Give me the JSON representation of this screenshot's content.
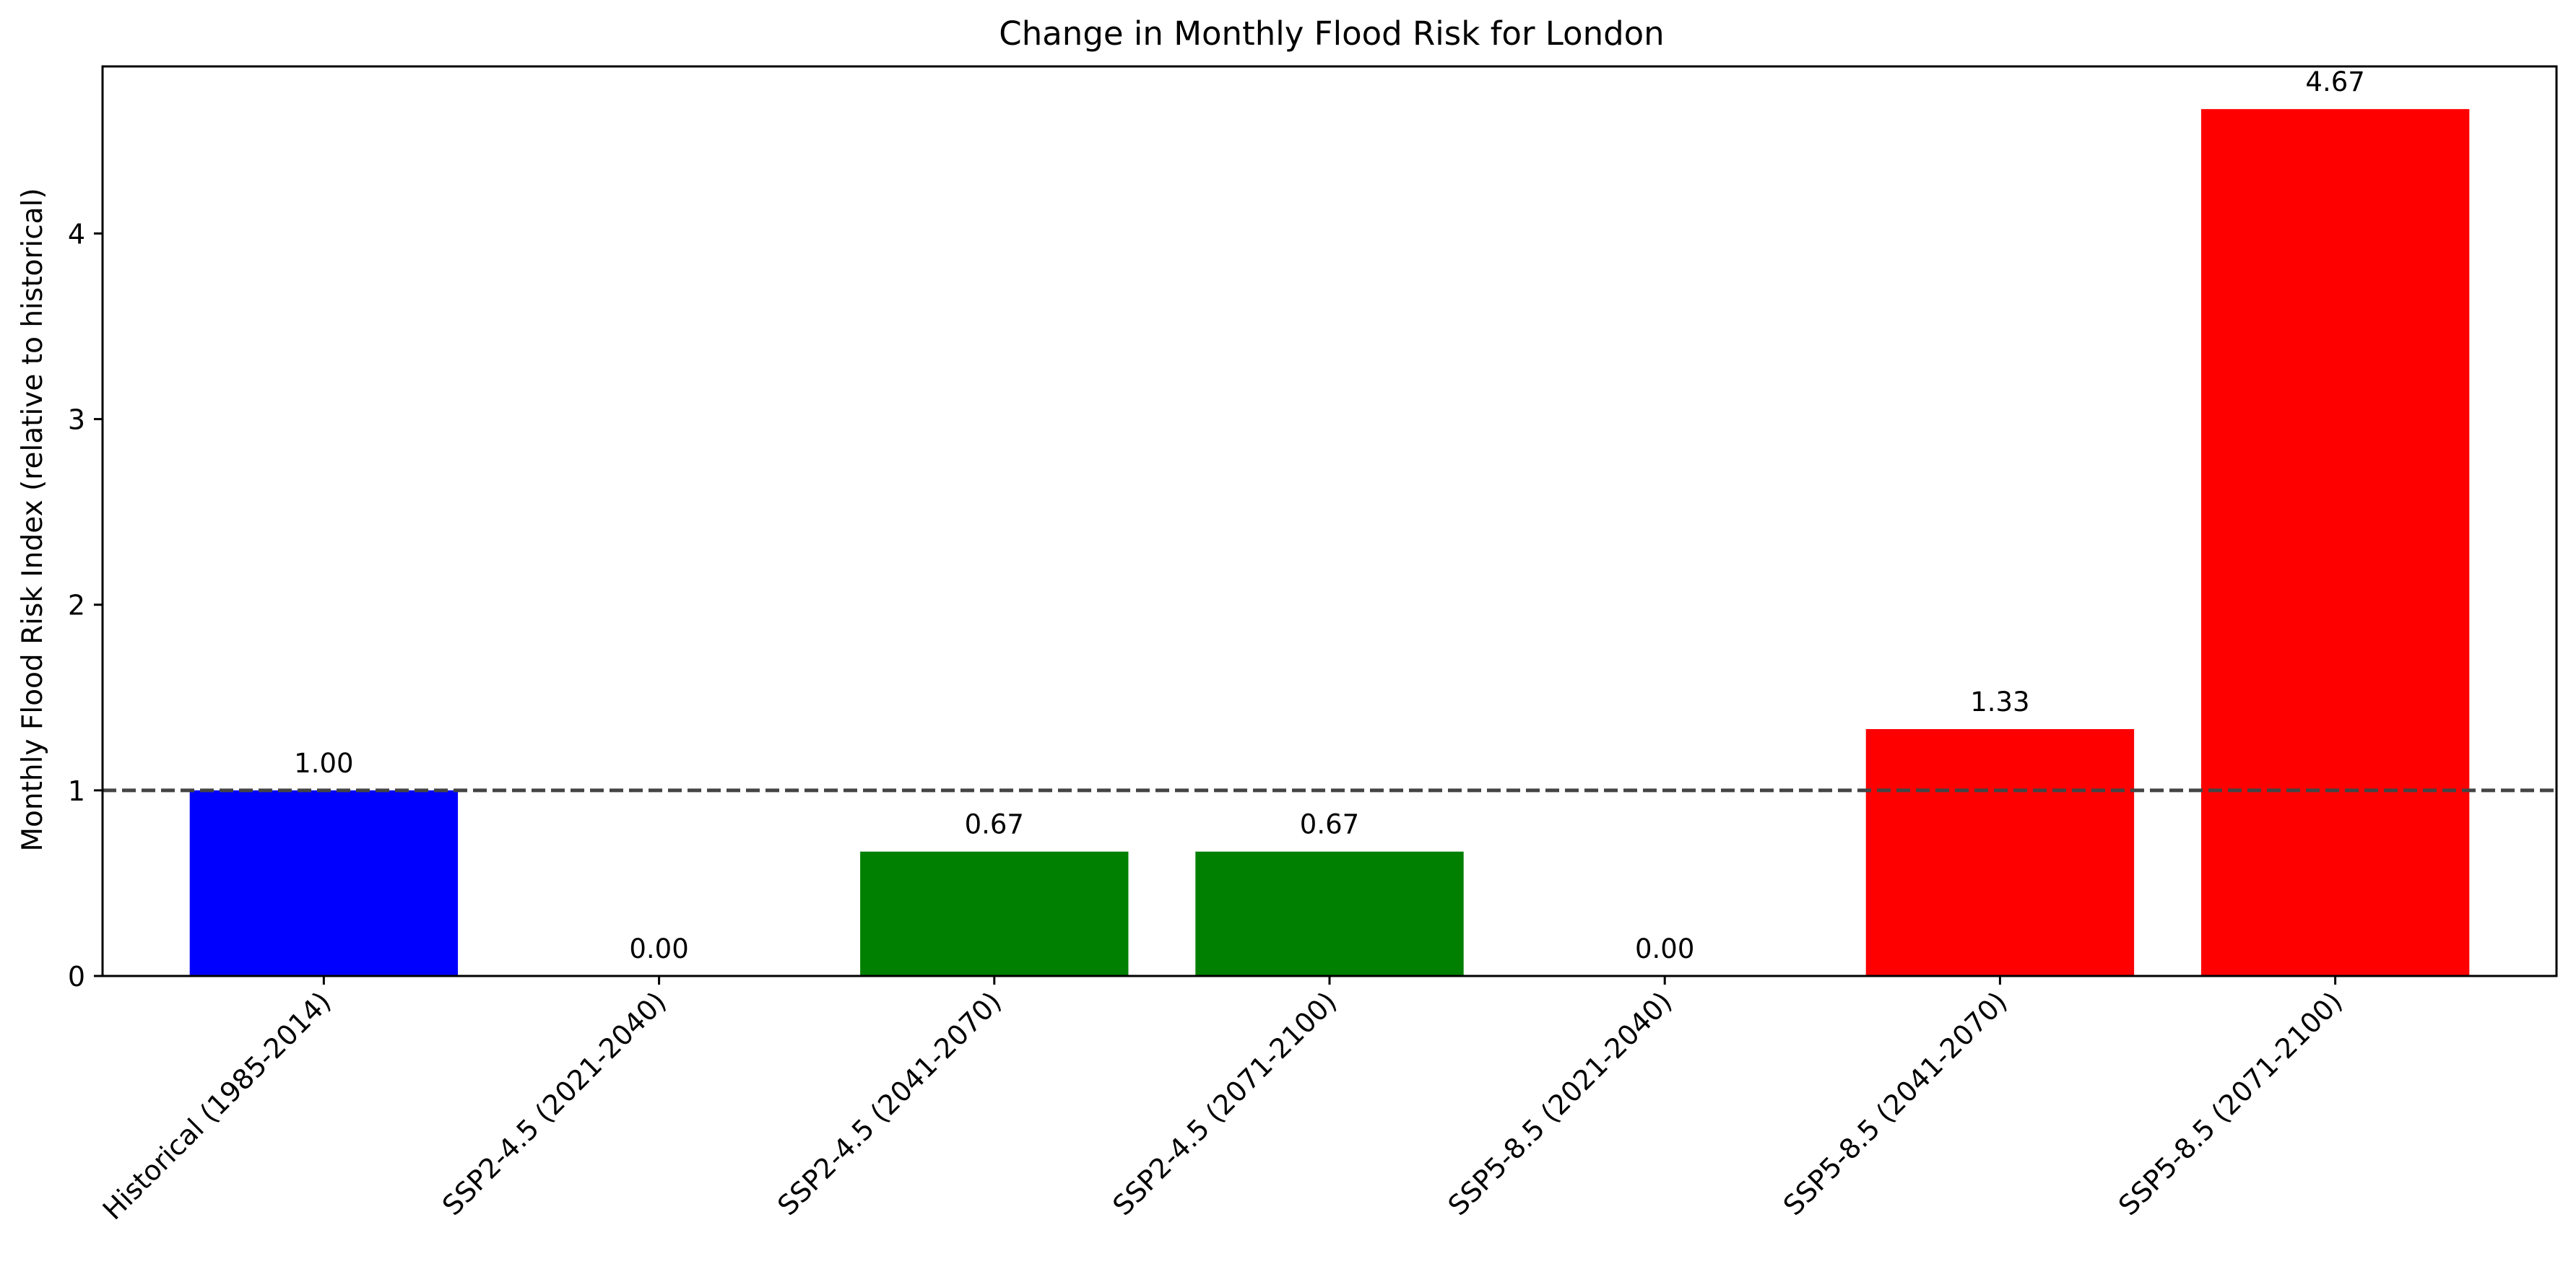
{
  "chart_data": {
    "type": "bar",
    "title": "Change in Monthly Flood Risk for London",
    "xlabel": "",
    "ylabel": "Monthly Flood Risk Index (relative to historical)",
    "categories": [
      "Historical (1985-2014)",
      "SSP2-4.5 (2021-2040)",
      "SSP2-4.5 (2041-2070)",
      "SSP2-4.5 (2071-2100)",
      "SSP5-8.5 (2021-2040)",
      "SSP5-8.5 (2041-2070)",
      "SSP5-8.5 (2071-2100)"
    ],
    "values": [
      1.0,
      0.0,
      0.67,
      0.67,
      0.0,
      1.33,
      4.67
    ],
    "value_labels": [
      "1.00",
      "0.00",
      "0.67",
      "0.67",
      "0.00",
      "1.33",
      "4.67"
    ],
    "colors": [
      "#0000ff",
      "#0000ff",
      "#008000",
      "#008000",
      "#ff0000",
      "#ff0000",
      "#ff0000"
    ],
    "ylim": [
      0,
      4.9
    ],
    "yticks": [
      0,
      1,
      2,
      3,
      4
    ],
    "reference_line": {
      "y": 1.0,
      "style": "dashed",
      "color": "#444444"
    },
    "grid": false,
    "legend": "none"
  }
}
